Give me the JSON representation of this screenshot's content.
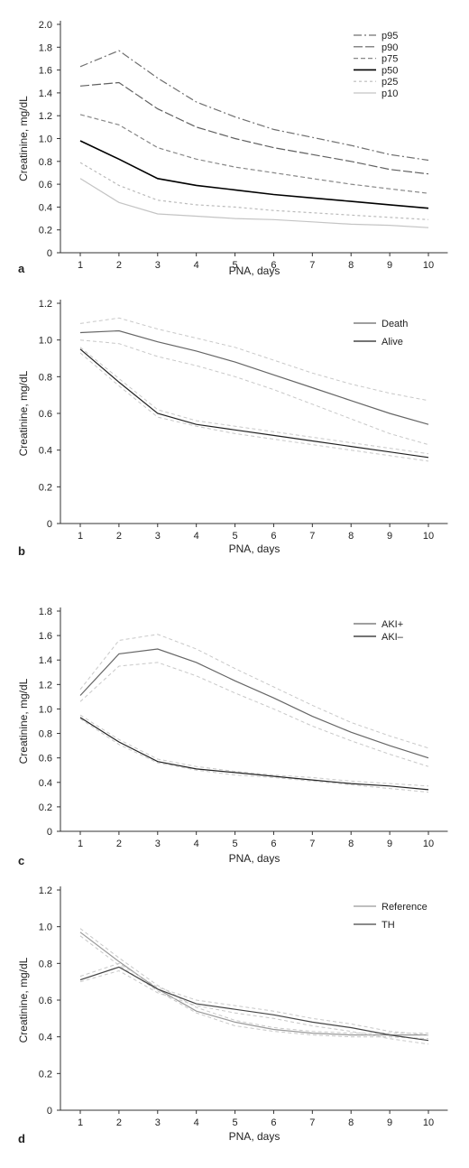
{
  "chart_data": [
    {
      "type": "line",
      "panel_label": "a",
      "xlabel": "PNA, days",
      "ylabel": "Creatinine, mg/dL",
      "x": [
        1,
        2,
        3,
        4,
        5,
        6,
        7,
        8,
        9,
        10
      ],
      "xlim": [
        0.5,
        10.5
      ],
      "ylim": [
        0,
        2.0
      ],
      "yticks": [
        "0",
        "0.2",
        "0.4",
        "0.6",
        "0.8",
        "1.0",
        "1.2",
        "1.4",
        "1.6",
        "1.8",
        "2.0"
      ],
      "legend_position": "top-right",
      "grid": false,
      "series": [
        {
          "name": "p95",
          "color": "#707070",
          "dash": "dashdot",
          "values": [
            1.63,
            1.77,
            1.53,
            1.32,
            1.19,
            1.08,
            1.01,
            0.94,
            0.86,
            0.81
          ]
        },
        {
          "name": "p90",
          "color": "#606060",
          "dash": "longdash",
          "values": [
            1.46,
            1.49,
            1.26,
            1.1,
            1.0,
            0.92,
            0.86,
            0.8,
            0.73,
            0.69
          ]
        },
        {
          "name": "p75",
          "color": "#888888",
          "dash": "dash",
          "values": [
            1.21,
            1.12,
            0.92,
            0.82,
            0.75,
            0.7,
            0.65,
            0.6,
            0.56,
            0.52
          ]
        },
        {
          "name": "p50",
          "color": "#000000",
          "dash": "solid",
          "values": [
            0.98,
            0.82,
            0.65,
            0.59,
            0.55,
            0.51,
            0.48,
            0.45,
            0.42,
            0.39
          ]
        },
        {
          "name": "p25",
          "color": "#bbbbbb",
          "dash": "shortdash",
          "values": [
            0.79,
            0.59,
            0.46,
            0.42,
            0.4,
            0.37,
            0.35,
            0.33,
            0.31,
            0.29
          ]
        },
        {
          "name": "p10",
          "color": "#c4c4c4",
          "dash": "solid",
          "values": [
            0.65,
            0.44,
            0.34,
            0.32,
            0.3,
            0.29,
            0.27,
            0.25,
            0.24,
            0.22
          ]
        }
      ]
    },
    {
      "type": "line",
      "panel_label": "b",
      "xlabel": "PNA, days",
      "ylabel": "Creatinine, mg/dL",
      "x": [
        1,
        2,
        3,
        4,
        5,
        6,
        7,
        8,
        9,
        10
      ],
      "xlim": [
        0.5,
        10.5
      ],
      "ylim": [
        0,
        1.2
      ],
      "yticks": [
        "0",
        "0.2",
        "0.4",
        "0.6",
        "0.8",
        "1.0",
        "1.2"
      ],
      "legend_position": "top-right",
      "grid": false,
      "series": [
        {
          "name": "Death",
          "color": "#666666",
          "dash": "solid",
          "values": [
            1.04,
            1.05,
            0.99,
            0.94,
            0.88,
            0.81,
            0.74,
            0.67,
            0.6,
            0.54
          ],
          "ci_upper": [
            1.09,
            1.12,
            1.06,
            1.01,
            0.96,
            0.89,
            0.82,
            0.76,
            0.71,
            0.67
          ],
          "ci_lower": [
            1.0,
            0.98,
            0.91,
            0.86,
            0.8,
            0.73,
            0.65,
            0.57,
            0.49,
            0.43
          ]
        },
        {
          "name": "Alive",
          "color": "#222222",
          "dash": "solid",
          "values": [
            0.95,
            0.77,
            0.6,
            0.54,
            0.51,
            0.48,
            0.45,
            0.42,
            0.39,
            0.36
          ],
          "ci_upper": [
            0.96,
            0.79,
            0.62,
            0.56,
            0.53,
            0.5,
            0.47,
            0.44,
            0.41,
            0.38
          ],
          "ci_lower": [
            0.93,
            0.75,
            0.58,
            0.53,
            0.49,
            0.46,
            0.43,
            0.4,
            0.37,
            0.34
          ]
        }
      ]
    },
    {
      "type": "line",
      "panel_label": "c",
      "xlabel": "PNA, days",
      "ylabel": "Creatinine, mg/dL",
      "x": [
        1,
        2,
        3,
        4,
        5,
        6,
        7,
        8,
        9,
        10
      ],
      "xlim": [
        0.5,
        10.5
      ],
      "ylim": [
        0,
        1.8
      ],
      "yticks": [
        "0",
        "0.2",
        "0.4",
        "0.6",
        "0.8",
        "1.0",
        "1.2",
        "1.4",
        "1.6",
        "1.8"
      ],
      "legend_position": "top-right",
      "grid": false,
      "series": [
        {
          "name": "AKI+",
          "color": "#666666",
          "dash": "solid",
          "values": [
            1.11,
            1.45,
            1.49,
            1.38,
            1.23,
            1.09,
            0.94,
            0.81,
            0.7,
            0.6
          ],
          "ci_upper": [
            1.16,
            1.56,
            1.61,
            1.49,
            1.33,
            1.18,
            1.03,
            0.89,
            0.78,
            0.68
          ],
          "ci_lower": [
            1.06,
            1.35,
            1.38,
            1.27,
            1.13,
            1.0,
            0.86,
            0.74,
            0.63,
            0.53
          ]
        },
        {
          "name": "AKI–",
          "color": "#222222",
          "dash": "solid",
          "values": [
            0.93,
            0.73,
            0.57,
            0.51,
            0.48,
            0.45,
            0.42,
            0.39,
            0.37,
            0.34
          ],
          "ci_upper": [
            0.95,
            0.75,
            0.59,
            0.53,
            0.49,
            0.46,
            0.44,
            0.41,
            0.39,
            0.37
          ],
          "ci_lower": [
            0.92,
            0.71,
            0.56,
            0.5,
            0.46,
            0.44,
            0.41,
            0.38,
            0.35,
            0.32
          ]
        }
      ]
    },
    {
      "type": "line",
      "panel_label": "d",
      "xlabel": "PNA, days",
      "ylabel": "Creatinine, mg/dL",
      "x": [
        1,
        2,
        3,
        4,
        5,
        6,
        7,
        8,
        9,
        10
      ],
      "xlim": [
        0.5,
        10.5
      ],
      "ylim": [
        0,
        1.2
      ],
      "yticks": [
        "0",
        "0.2",
        "0.4",
        "0.6",
        "0.8",
        "1.0",
        "1.2"
      ],
      "legend_position": "top-right",
      "grid": false,
      "series": [
        {
          "name": "Reference",
          "color": "#999999",
          "dash": "solid",
          "values": [
            0.97,
            0.81,
            0.66,
            0.54,
            0.48,
            0.44,
            0.42,
            0.41,
            0.41,
            0.41
          ],
          "ci_upper": [
            0.99,
            0.83,
            0.68,
            0.56,
            0.49,
            0.45,
            0.43,
            0.42,
            0.42,
            0.42
          ],
          "ci_lower": [
            0.95,
            0.79,
            0.65,
            0.53,
            0.46,
            0.43,
            0.41,
            0.4,
            0.4,
            0.39
          ]
        },
        {
          "name": "TH",
          "color": "#444444",
          "dash": "solid",
          "values": [
            0.71,
            0.78,
            0.66,
            0.58,
            0.55,
            0.52,
            0.48,
            0.45,
            0.41,
            0.38
          ],
          "ci_upper": [
            0.73,
            0.8,
            0.67,
            0.6,
            0.57,
            0.54,
            0.5,
            0.47,
            0.43,
            0.41
          ],
          "ci_lower": [
            0.7,
            0.76,
            0.64,
            0.57,
            0.53,
            0.5,
            0.46,
            0.43,
            0.39,
            0.36
          ]
        }
      ]
    }
  ]
}
